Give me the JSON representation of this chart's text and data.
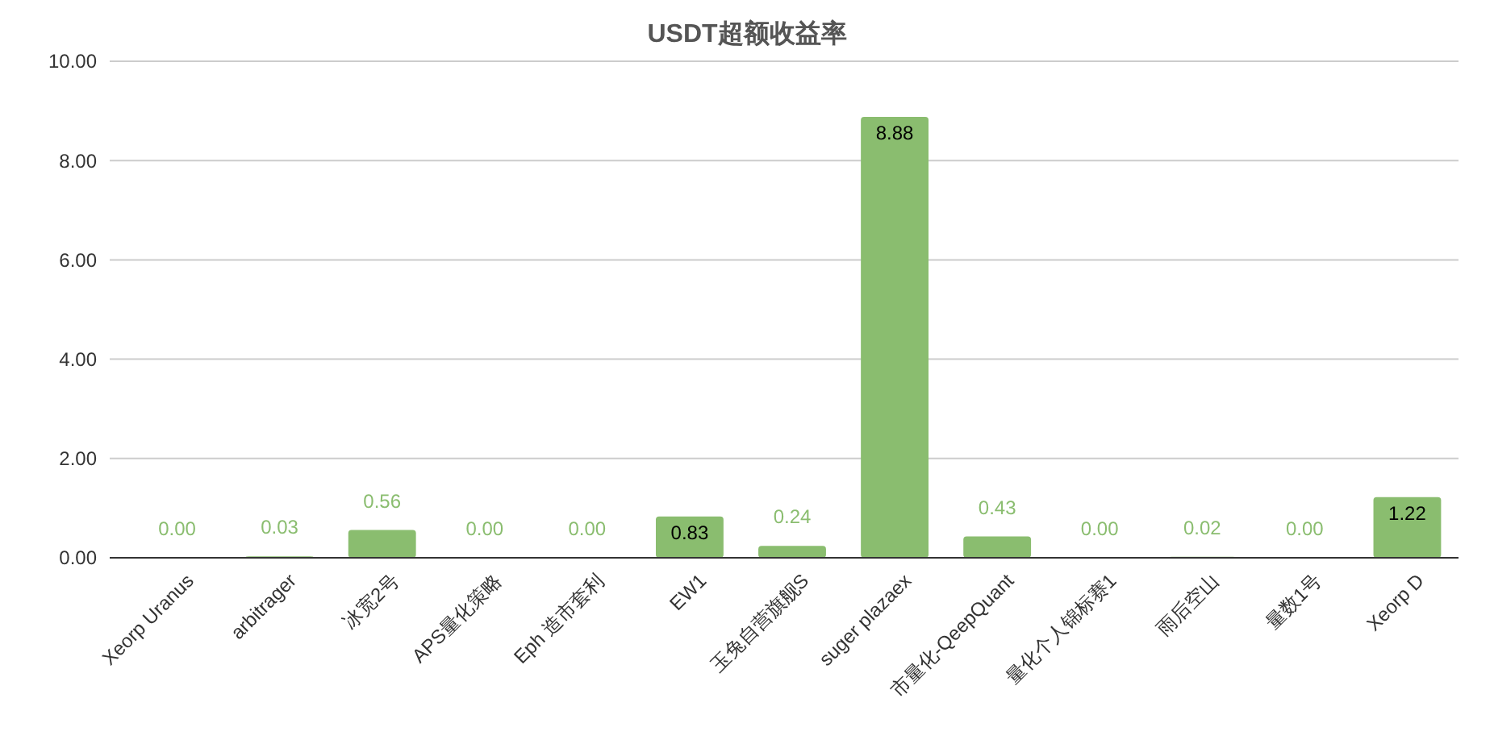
{
  "chart_data": {
    "type": "bar",
    "title": "USDT超额收益率",
    "categories": [
      "Xeorp Uranus",
      "arbitrager",
      "冰宽2号",
      "APS量化策略",
      "Eph 造市套利",
      "EW1",
      "玉兔自营旗舰S",
      "suger plazaex",
      "市量化-QeepQuant",
      "量化个人锦标赛1",
      "雨后空山",
      "量数1号",
      "Xeorp D"
    ],
    "values": [
      0,
      0.03,
      0.56,
      0,
      0,
      0.83,
      0.24,
      8.88,
      0.43,
      0,
      0.02,
      0,
      1.22
    ],
    "value_labels": [
      "0.00",
      "0.03",
      "0.56",
      "0.00",
      "0.00",
      "0.83",
      "0.24",
      "8.88",
      "0.43",
      "0.00",
      "0.02",
      "0.00",
      "1.22"
    ],
    "color": "#8abd6f",
    "ylim": [
      0,
      10
    ],
    "yticks": [
      {
        "value": 0,
        "label": "0.00"
      },
      {
        "value": 2,
        "label": "2.00"
      },
      {
        "value": 4,
        "label": "4.00"
      },
      {
        "value": 6,
        "label": "6.00"
      },
      {
        "value": 8,
        "label": "8.00"
      },
      {
        "value": 10,
        "label": "10.00"
      }
    ],
    "grid": "y"
  }
}
